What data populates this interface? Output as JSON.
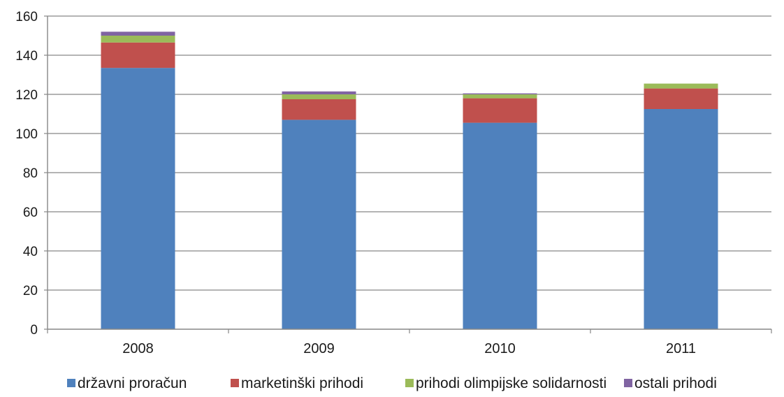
{
  "chart_data": {
    "type": "bar",
    "stacked": true,
    "categories": [
      "2008",
      "2009",
      "2010",
      "2011"
    ],
    "series": [
      {
        "name": "državni proračun",
        "color": "#4f81bd",
        "values": [
          133.5,
          107,
          105.5,
          112.5
        ]
      },
      {
        "name": "marketinški prihodi",
        "color": "#c0504d",
        "values": [
          13,
          10.5,
          12.5,
          10.5
        ]
      },
      {
        "name": "prihodi olimpijske solidarnosti",
        "color": "#9bbb59",
        "values": [
          3.5,
          2.5,
          2,
          2.5
        ]
      },
      {
        "name": "ostali prihodi",
        "color": "#8064a2",
        "values": [
          2,
          1.5,
          0.5,
          0
        ]
      }
    ],
    "ylim": [
      0,
      160
    ],
    "yticks": [
      0,
      20,
      40,
      60,
      80,
      100,
      120,
      140,
      160
    ],
    "grid": true,
    "legend": "bottom",
    "title": "",
    "xlabel": "",
    "ylabel": ""
  }
}
